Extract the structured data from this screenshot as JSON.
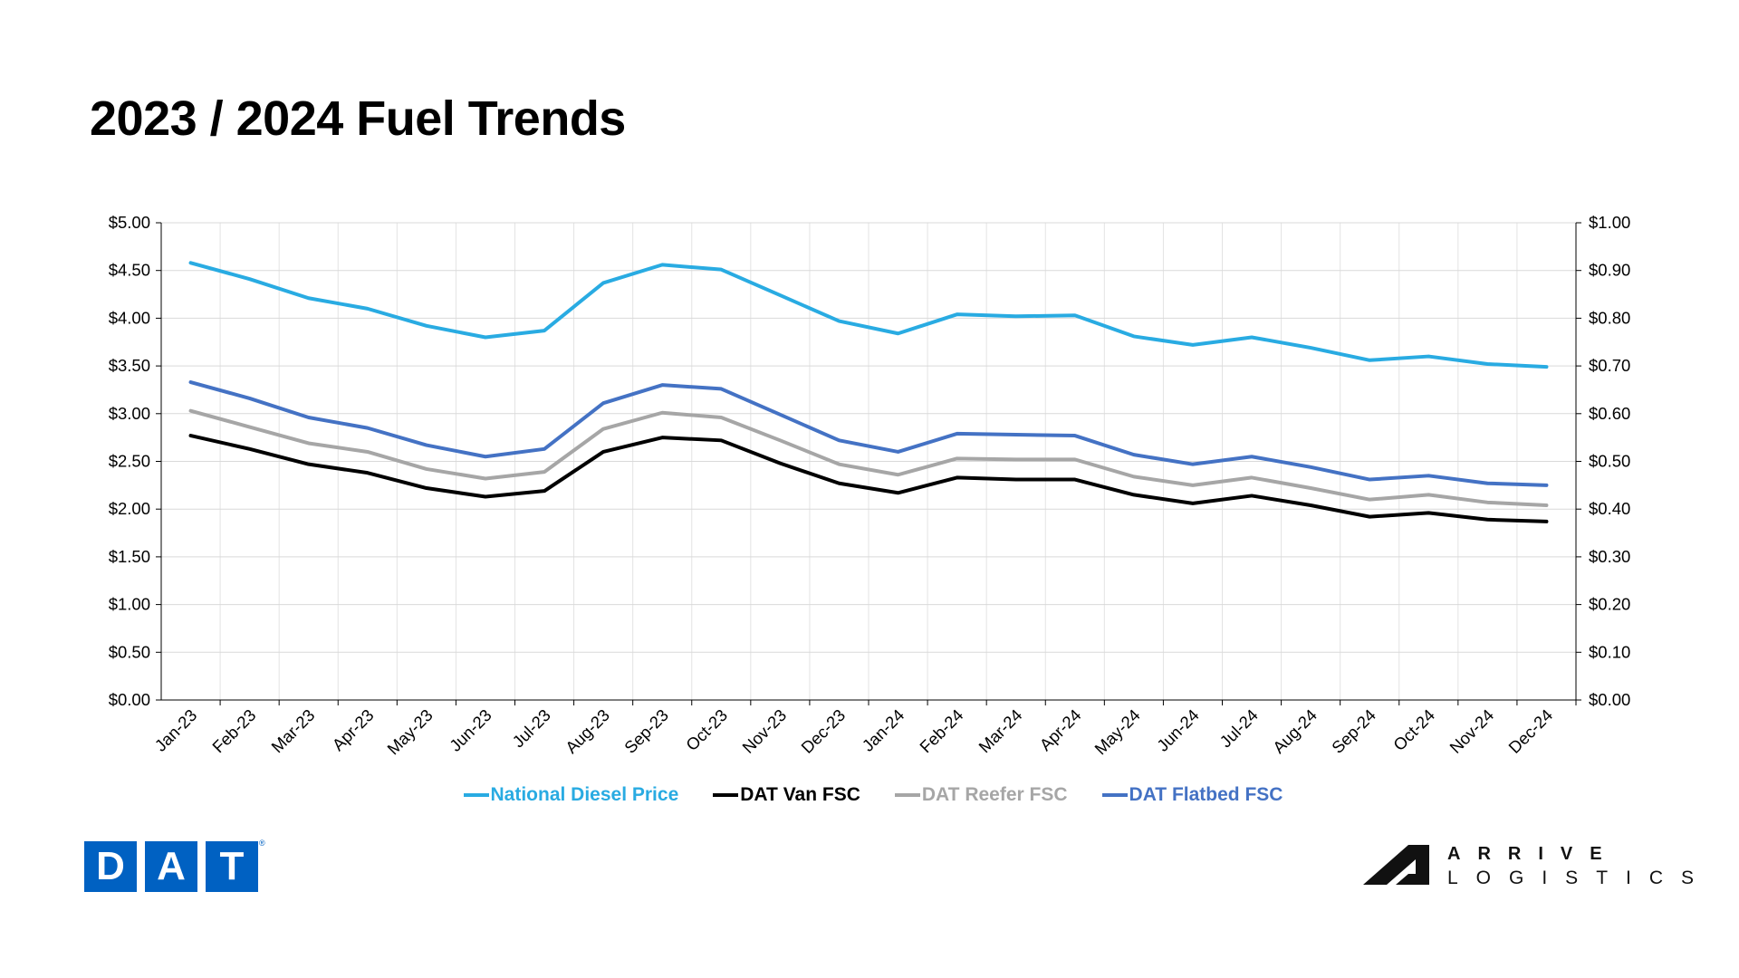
{
  "title": "2023 / 2024 Fuel Trends",
  "logos": {
    "dat": "DAT",
    "dat_letters": [
      "D",
      "A",
      "T"
    ],
    "dat_reg": "®",
    "arrive_top": "ARRIVE",
    "arrive_bottom": "LOGISTICS"
  },
  "chart_data": {
    "type": "line",
    "title": "2023 / 2024 Fuel Trends",
    "categories": [
      "Jan-23",
      "Feb-23",
      "Mar-23",
      "Apr-23",
      "May-23",
      "Jun-23",
      "Jul-23",
      "Aug-23",
      "Sep-23",
      "Oct-23",
      "Nov-23",
      "Dec-23",
      "Jan-24",
      "Feb-24",
      "Mar-24",
      "Apr-24",
      "May-24",
      "Jun-24",
      "Jul-24",
      "Aug-24",
      "Sep-24",
      "Oct-24",
      "Nov-24",
      "Dec-24"
    ],
    "ylim": [
      0,
      5
    ],
    "y2lim": [
      0,
      1
    ],
    "yticks": [
      "$0.00",
      "$0.50",
      "$1.00",
      "$1.50",
      "$2.00",
      "$2.50",
      "$3.00",
      "$3.50",
      "$4.00",
      "$4.50",
      "$5.00"
    ],
    "y2ticks": [
      "$0.00",
      "$0.10",
      "$0.20",
      "$0.30",
      "$0.40",
      "$0.50",
      "$0.60",
      "$0.70",
      "$0.80",
      "$0.90",
      "$1.00"
    ],
    "grid": true,
    "legend_position": "bottom",
    "series": [
      {
        "name": "National Diesel Price",
        "color": "#29ABE2",
        "values": [
          4.58,
          4.41,
          4.21,
          4.1,
          3.92,
          3.8,
          3.87,
          4.37,
          4.56,
          4.51,
          4.24,
          3.97,
          3.84,
          4.04,
          4.02,
          4.03,
          3.81,
          3.72,
          3.8,
          3.69,
          3.56,
          3.6,
          3.52,
          3.49
        ]
      },
      {
        "name": "DAT Van FSC",
        "color": "#000000",
        "values": [
          2.77,
          2.63,
          2.47,
          2.38,
          2.22,
          2.13,
          2.19,
          2.6,
          2.75,
          2.72,
          2.48,
          2.27,
          2.17,
          2.33,
          2.31,
          2.31,
          2.15,
          2.06,
          2.14,
          2.04,
          1.92,
          1.96,
          1.89,
          1.87
        ]
      },
      {
        "name": "DAT Reefer FSC",
        "color": "#A6A6A6",
        "values": [
          3.03,
          2.86,
          2.69,
          2.6,
          2.42,
          2.32,
          2.39,
          2.84,
          3.01,
          2.96,
          2.72,
          2.47,
          2.36,
          2.53,
          2.52,
          2.52,
          2.34,
          2.25,
          2.33,
          2.22,
          2.1,
          2.15,
          2.07,
          2.04
        ]
      },
      {
        "name": "DAT Flatbed FSC",
        "color": "#4472C4",
        "values": [
          3.33,
          3.16,
          2.96,
          2.85,
          2.67,
          2.55,
          2.63,
          3.11,
          3.3,
          3.26,
          2.99,
          2.72,
          2.6,
          2.79,
          2.78,
          2.77,
          2.57,
          2.47,
          2.55,
          2.44,
          2.31,
          2.35,
          2.27,
          2.25
        ]
      }
    ]
  }
}
